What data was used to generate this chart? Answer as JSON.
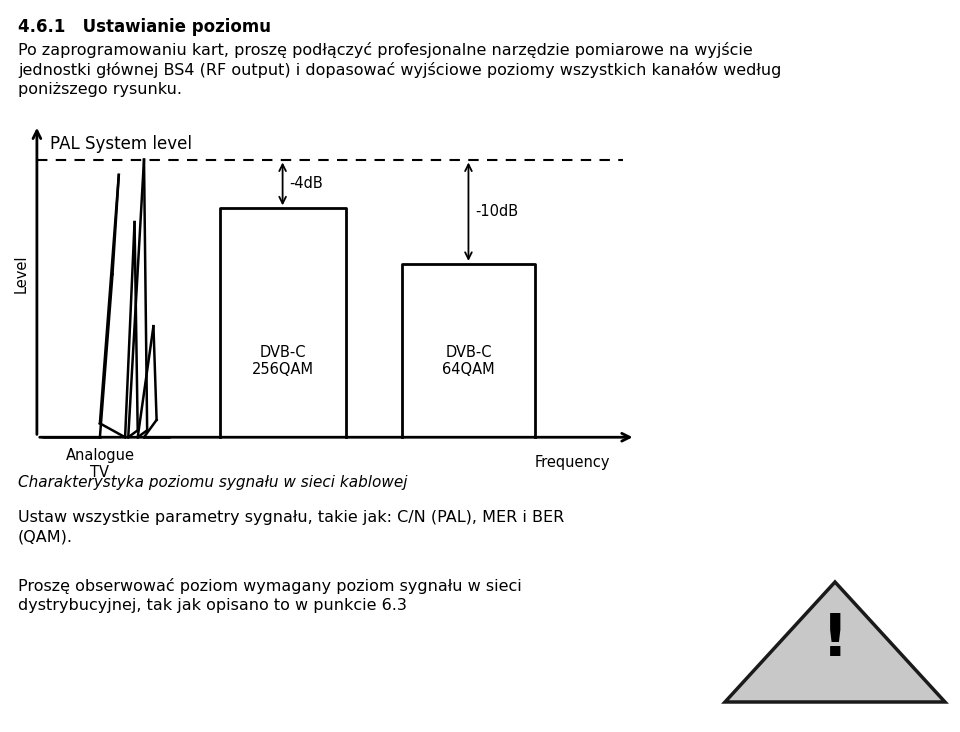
{
  "title_bold": "4.6.1   Ustawianie poziomu",
  "para1_lines": [
    "Po zaprogramowaniu kart, proszę podłączyć profesjonalne narzędzie pomiarowe na wyjście",
    "jednostki głównej BS4 (RF output) i dopasować wyjściowe poziomy wszystkich kanałów według",
    "poniższego rysunku."
  ],
  "caption": "Charakterystyka poziomu sygnału w sieci kablowej",
  "para2_lines": [
    "Ustaw wszystkie parametry sygnału, takie jak: C/N (PAL), MER i BER",
    "(QAM)."
  ],
  "para3_lines": [
    "Proszę obserwować poziom wymagany poziom sygnału w sieci",
    "dystrybucyjnej, tak jak opisano to w punkcie 6.3"
  ],
  "graph_title": "PAL System level",
  "label_4db": "-4dB",
  "label_10db": "-10dB",
  "xlabel": "Frequency",
  "ylabel": "Level",
  "label_analogue": "Analogue\nTV",
  "label_dvbc1": "DVB-C\n256QAM",
  "label_dvbc2": "DVB-C\n64QAM",
  "bg_color": "#ffffff",
  "text_color": "#000000",
  "tri_fill": "#c8c8c8",
  "tri_edge": "#1a1a1a"
}
